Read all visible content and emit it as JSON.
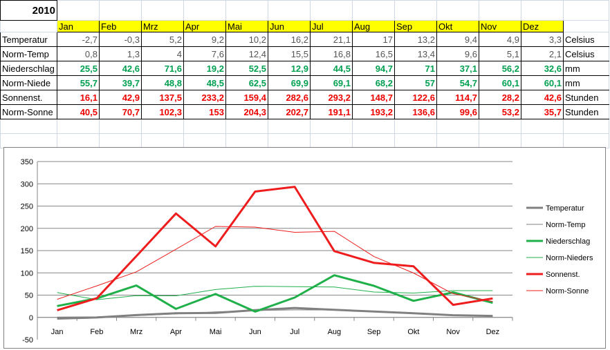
{
  "table": {
    "year": "2010",
    "months": [
      "Jan",
      "Feb",
      "Mrz",
      "Apr",
      "Mai",
      "Jun",
      "Jul",
      "Aug",
      "Sep",
      "Okt",
      "Nov",
      "Dez"
    ],
    "rows": [
      {
        "label": "Temperatur",
        "values": [
          "-2,7",
          "-0,3",
          "5,2",
          "9,2",
          "10,2",
          "16,2",
          "21,1",
          "17",
          "13,2",
          "9,4",
          "4,9",
          "3,3"
        ],
        "unit": "Celsius",
        "color": "gray"
      },
      {
        "label": "Norm-Temp",
        "values": [
          "0,8",
          "1,3",
          "4",
          "7,6",
          "12,4",
          "15,5",
          "16,8",
          "16,5",
          "13,4",
          "9,6",
          "5,1",
          "2,1"
        ],
        "unit": "Celsius",
        "color": "gray"
      },
      {
        "label": "Niederschlag",
        "values": [
          "25,5",
          "42,6",
          "71,6",
          "19,2",
          "52,5",
          "12,9",
          "44,5",
          "94,7",
          "71",
          "37,1",
          "56,2",
          "32,6"
        ],
        "unit": "mm",
        "color": "green"
      },
      {
        "label": "Norm-Niede",
        "values": [
          "55,7",
          "39,7",
          "48,8",
          "48,5",
          "62,5",
          "69,9",
          "69,1",
          "68,2",
          "57",
          "54,7",
          "60,1",
          "60,1"
        ],
        "unit": "mm",
        "color": "green"
      },
      {
        "label": "Sonnenst.",
        "values": [
          "16,1",
          "42,9",
          "137,5",
          "233,2",
          "159,4",
          "282,6",
          "293,2",
          "148,7",
          "122,6",
          "114,7",
          "28,2",
          "42,6"
        ],
        "unit": "Stunden",
        "color": "red"
      },
      {
        "label": "Norm-Sonne",
        "values": [
          "40,5",
          "70,7",
          "102,3",
          "153",
          "204,3",
          "202,7",
          "191,1",
          "193,2",
          "136,6",
          "99,6",
          "53,2",
          "35,7"
        ],
        "unit": "Stunden",
        "color": "red"
      }
    ]
  },
  "chart_data": {
    "type": "line",
    "categories": [
      "Jan",
      "Feb",
      "Mrz",
      "Apr",
      "Mai",
      "Jun",
      "Jul",
      "Aug",
      "Sep",
      "Okt",
      "Nov",
      "Dez"
    ],
    "ylim": [
      -50,
      350
    ],
    "yticks": [
      -50,
      0,
      50,
      100,
      150,
      200,
      250,
      300,
      350
    ],
    "grid": true,
    "legend_position": "right",
    "series": [
      {
        "name": "Temperatur",
        "values": [
          -2.7,
          -0.3,
          5.2,
          9.2,
          10.2,
          16.2,
          21.1,
          17,
          13.2,
          9.4,
          4.9,
          3.3
        ],
        "color": "#808080",
        "weight": "thick"
      },
      {
        "name": "Norm-Temp",
        "values": [
          0.8,
          1.3,
          4,
          7.6,
          12.4,
          15.5,
          16.8,
          16.5,
          13.4,
          9.6,
          5.1,
          2.1
        ],
        "color": "#808080",
        "weight": "thin"
      },
      {
        "name": "Niederschlag",
        "values": [
          25.5,
          42.6,
          71.6,
          19.2,
          52.5,
          12.9,
          44.5,
          94.7,
          71,
          37.1,
          56.2,
          32.6
        ],
        "color": "#1fb04a",
        "weight": "thick"
      },
      {
        "name": "Norm-Nieders",
        "values": [
          55.7,
          39.7,
          48.8,
          48.5,
          62.5,
          69.9,
          69.1,
          68.2,
          57,
          54.7,
          60.1,
          60.1
        ],
        "color": "#1fb04a",
        "weight": "thin"
      },
      {
        "name": "Sonnenst.",
        "values": [
          16.1,
          42.9,
          137.5,
          233.2,
          159.4,
          282.6,
          293.2,
          148.7,
          122.6,
          114.7,
          28.2,
          42.6
        ],
        "color": "#ee1c1c",
        "weight": "thick"
      },
      {
        "name": "Norm-Sonne",
        "values": [
          40.5,
          70.7,
          102.3,
          153,
          204.3,
          202.7,
          191.1,
          193.2,
          136.6,
          99.6,
          53.2,
          35.7
        ],
        "color": "#ee1c1c",
        "weight": "thin"
      }
    ]
  }
}
